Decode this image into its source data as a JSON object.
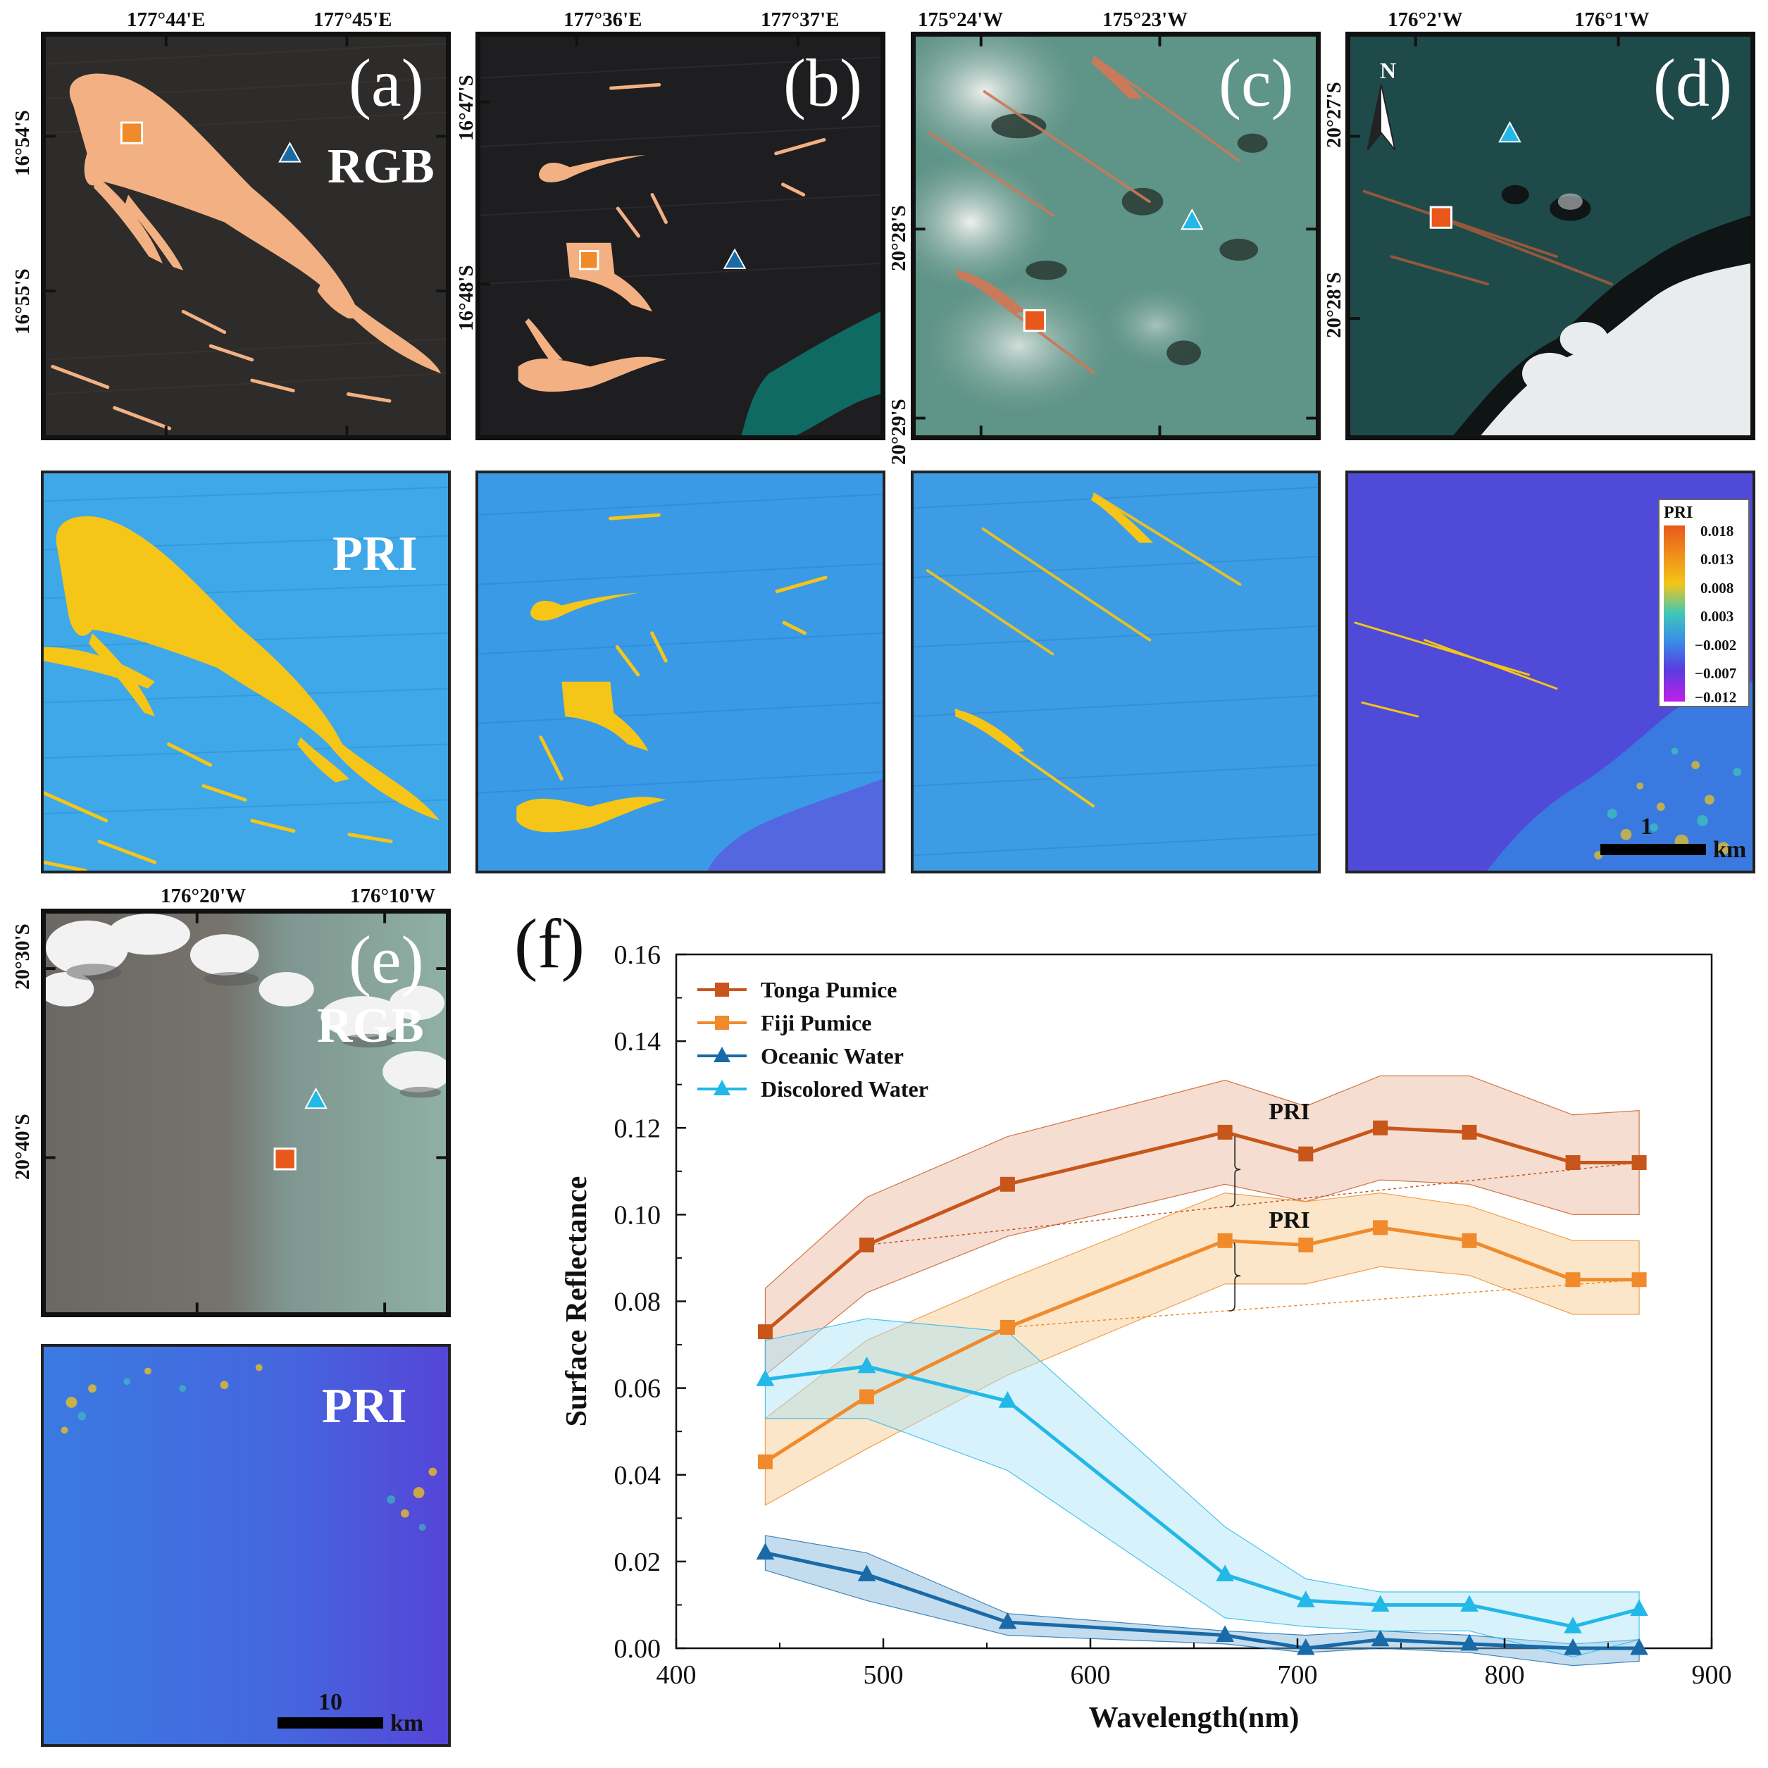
{
  "figure": {
    "panels": [
      {
        "id": "a",
        "label": "(a)",
        "mode": "RGB",
        "lon_ticks": [
          "177°44'E",
          "177°45'E"
        ],
        "lat_ticks": [
          "16°54'S",
          "16°55'S"
        ]
      },
      {
        "id": "b",
        "label": "(b)",
        "lon_ticks": [
          "177°36'E",
          "177°37'E"
        ],
        "lat_ticks": [
          "16°47'S",
          "16°48'S"
        ]
      },
      {
        "id": "c",
        "label": "(c)",
        "lon_ticks": [
          "175°24'W",
          "175°23'W"
        ],
        "lat_ticks": [
          "20°28'S",
          "20°29'S"
        ]
      },
      {
        "id": "d",
        "label": "(d)",
        "lon_ticks": [
          "176°2'W",
          "176°1'W"
        ],
        "lat_ticks": [
          "20°27'S",
          "20°28'S"
        ],
        "north_arrow": "N"
      },
      {
        "id": "e",
        "label": "(e)",
        "mode": "RGB",
        "lon_ticks": [
          "176°20'W",
          "176°10'W"
        ],
        "lat_ticks": [
          "20°30'S",
          "20°40'S"
        ]
      }
    ],
    "pri_panels": [
      {
        "id": "a-pri",
        "mode": "PRI"
      },
      {
        "id": "b-pri"
      },
      {
        "id": "c-pri"
      },
      {
        "id": "d-pri",
        "scale_value": "1",
        "scale_unit": "km"
      },
      {
        "id": "e-pri",
        "mode": "PRI",
        "scale_value": "10",
        "scale_unit": "km"
      }
    ],
    "colorbar": {
      "title": "PRI",
      "ticks": [
        "0.018",
        "0.013",
        "0.008",
        "0.003",
        "−0.002",
        "−0.007",
        "−0.012"
      ],
      "colors": [
        "#e8581a",
        "#f5c518",
        "#3ec8b8",
        "#3a8be8",
        "#5a3be0",
        "#c020e8"
      ]
    },
    "marker_colors": {
      "tonga_pumice": "#c8561a",
      "fiji_pumice": "#f08a2a",
      "oceanic_water": "#1a6aa8",
      "discolored_water": "#22b8e8"
    }
  },
  "chart_data": {
    "type": "line",
    "panel_label": "(f)",
    "title": "",
    "xlabel": "Wavelength(nm)",
    "ylabel": "Surface Reflectance",
    "xlim": [
      400,
      900
    ],
    "ylim": [
      0.0,
      0.16
    ],
    "x_ticks": [
      400,
      500,
      600,
      700,
      800,
      900
    ],
    "y_ticks": [
      0.0,
      0.02,
      0.04,
      0.06,
      0.08,
      0.1,
      0.12,
      0.14,
      0.16
    ],
    "x_tick_labels": [
      "400",
      "500",
      "600",
      "700",
      "800",
      "900"
    ],
    "y_tick_labels": [
      "0.00",
      "0.02",
      "0.04",
      "0.06",
      "0.08",
      "0.10",
      "0.12",
      "0.14",
      "0.16"
    ],
    "x": [
      443,
      492,
      560,
      665,
      704,
      740,
      783,
      833,
      865
    ],
    "legend_position": "top-left",
    "series": [
      {
        "name": "Tonga Pumice",
        "marker": "square",
        "color": "#c8561a",
        "band_color": "#e8b49a",
        "values": [
          0.073,
          0.093,
          0.107,
          0.119,
          0.114,
          0.12,
          0.119,
          0.112,
          0.112
        ],
        "upper": [
          0.083,
          0.104,
          0.118,
          0.131,
          0.125,
          0.132,
          0.132,
          0.123,
          0.124
        ],
        "lower": [
          0.063,
          0.082,
          0.095,
          0.107,
          0.103,
          0.108,
          0.107,
          0.1,
          0.1
        ]
      },
      {
        "name": "Fiji Pumice",
        "marker": "square",
        "color": "#f08a2a",
        "band_color": "#f7c88a",
        "values": [
          0.043,
          0.058,
          0.074,
          0.094,
          0.093,
          0.097,
          0.094,
          0.085,
          0.085
        ],
        "upper": [
          0.053,
          0.071,
          0.085,
          0.105,
          0.103,
          0.105,
          0.102,
          0.094,
          0.094
        ],
        "lower": [
          0.033,
          0.046,
          0.063,
          0.084,
          0.084,
          0.088,
          0.086,
          0.077,
          0.077
        ]
      },
      {
        "name": "Oceanic Water",
        "marker": "triangle",
        "color": "#1a6aa8",
        "band_color": "#7ab4dc",
        "values": [
          0.022,
          0.017,
          0.006,
          0.003,
          0.0,
          0.002,
          0.001,
          0.0,
          0.0
        ],
        "upper": [
          0.026,
          0.022,
          0.008,
          0.004,
          0.003,
          0.004,
          0.003,
          0.001,
          0.002
        ],
        "lower": [
          0.018,
          0.011,
          0.003,
          0.001,
          -0.001,
          0.0,
          -0.001,
          -0.004,
          -0.003
        ]
      },
      {
        "name": "Discolored Water",
        "marker": "triangle",
        "color": "#22b8e8",
        "band_color": "#a8e2f6",
        "values": [
          0.062,
          0.065,
          0.057,
          0.017,
          0.011,
          0.01,
          0.01,
          0.005,
          0.009
        ],
        "upper": [
          0.071,
          0.076,
          0.073,
          0.028,
          0.016,
          0.013,
          0.013,
          0.013,
          0.013
        ],
        "lower": [
          0.053,
          0.053,
          0.041,
          0.007,
          0.005,
          0.004,
          0.004,
          -0.002,
          0.002
        ]
      }
    ],
    "annotations": [
      {
        "text": "PRI",
        "series": "Tonga Pumice",
        "at_x": 665,
        "baseline_from": 492,
        "baseline_to": 865,
        "label_x": 680,
        "label_y": 0.122
      },
      {
        "text": "PRI",
        "series": "Fiji Pumice",
        "at_x": 665,
        "baseline_from": 560,
        "baseline_to": 865,
        "label_x": 680,
        "label_y": 0.097
      }
    ]
  }
}
